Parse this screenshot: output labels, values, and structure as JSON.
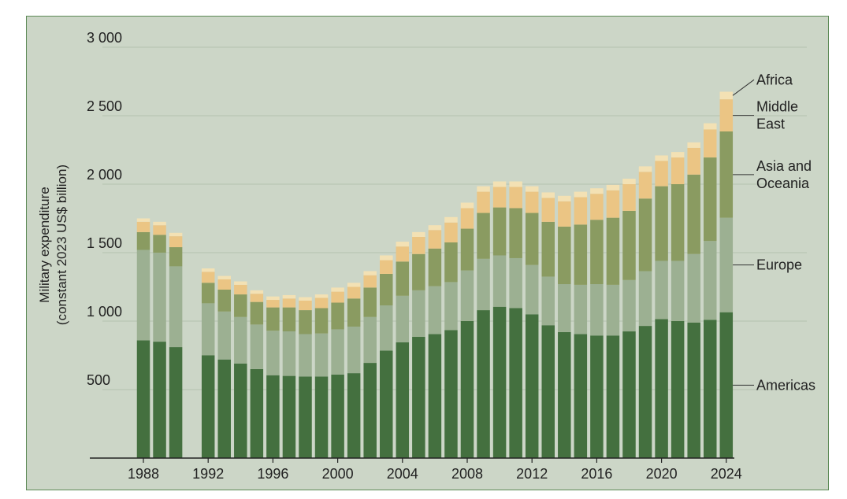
{
  "chart_data": {
    "type": "bar",
    "stacked": true,
    "ylabel_lines": [
      "Military expenditure",
      "(constant 2023 US$ billion)"
    ],
    "ylim": [
      0,
      3000
    ],
    "yticks": [
      500,
      1000,
      1500,
      2000,
      2500,
      3000
    ],
    "ytick_labels": [
      "500",
      "1 000",
      "1 500",
      "2 000",
      "2 500",
      "3 000"
    ],
    "xlim": [
      1985,
      2025
    ],
    "xticks": [
      1988,
      1992,
      1996,
      2000,
      2004,
      2008,
      2012,
      2016,
      2020,
      2024
    ],
    "xtick_labels": [
      "1988",
      "1992",
      "1996",
      "2000",
      "2004",
      "2008",
      "2012",
      "2016",
      "2020",
      "2024"
    ],
    "grid": true,
    "legend_placement": "right, labels at top of each series at 2024",
    "colors": {
      "background": "#ccd6c7",
      "border": "#5c8a56",
      "gridline": "#b5c1af",
      "axis": "#222222"
    },
    "x": [
      1988,
      1989,
      1990,
      1992,
      1993,
      1994,
      1995,
      1996,
      1997,
      1998,
      1999,
      2000,
      2001,
      2002,
      2003,
      2004,
      2005,
      2006,
      2007,
      2008,
      2009,
      2010,
      2011,
      2012,
      2013,
      2014,
      2015,
      2016,
      2017,
      2018,
      2019,
      2020,
      2021,
      2022,
      2023,
      2024
    ],
    "series": [
      {
        "name": "Americas",
        "color": "#44703f",
        "values": [
          860,
          850,
          810,
          750,
          720,
          690,
          650,
          605,
          600,
          595,
          595,
          610,
          620,
          695,
          785,
          845,
          885,
          905,
          935,
          1000,
          1080,
          1105,
          1095,
          1050,
          970,
          920,
          905,
          895,
          895,
          925,
          965,
          1015,
          1000,
          990,
          1010,
          1065
        ]
      },
      {
        "name": "Europe",
        "color": "#9cb092",
        "values": [
          660,
          650,
          590,
          380,
          350,
          340,
          325,
          325,
          325,
          310,
          315,
          330,
          340,
          335,
          330,
          340,
          340,
          350,
          350,
          370,
          375,
          375,
          365,
          360,
          355,
          350,
          360,
          375,
          370,
          375,
          400,
          425,
          440,
          500,
          575,
          690
        ]
      },
      {
        "name": "Asia and Oceania",
        "color": "#8a9b61",
        "values": [
          130,
          130,
          140,
          150,
          160,
          165,
          165,
          170,
          175,
          175,
          185,
          195,
          205,
          215,
          230,
          250,
          265,
          275,
          290,
          305,
          335,
          350,
          365,
          380,
          400,
          420,
          440,
          470,
          490,
          505,
          530,
          545,
          560,
          580,
          610,
          630
        ]
      },
      {
        "name": "Middle East",
        "color": "#ebc584",
        "values": [
          75,
          70,
          80,
          80,
          75,
          70,
          60,
          55,
          65,
          70,
          75,
          80,
          85,
          90,
          100,
          110,
          125,
          135,
          145,
          150,
          155,
          150,
          155,
          155,
          175,
          185,
          200,
          190,
          200,
          195,
          195,
          185,
          195,
          195,
          205,
          235
        ]
      },
      {
        "name": "Africa",
        "color": "#f3e1b4",
        "values": [
          25,
          25,
          25,
          25,
          25,
          25,
          25,
          25,
          25,
          25,
          25,
          30,
          30,
          30,
          35,
          35,
          35,
          35,
          40,
          40,
          40,
          40,
          40,
          40,
          40,
          40,
          40,
          40,
          40,
          40,
          40,
          40,
          40,
          40,
          45,
          55
        ]
      }
    ],
    "legend_labels": [
      {
        "series": "Africa",
        "lines": [
          "Africa"
        ]
      },
      {
        "series": "Middle East",
        "lines": [
          "Middle",
          "East"
        ]
      },
      {
        "series": "Asia and Oceania",
        "lines": [
          "Asia and",
          "Oceania"
        ]
      },
      {
        "series": "Europe",
        "lines": [
          "Europe"
        ]
      },
      {
        "series": "Americas",
        "lines": [
          "Americas"
        ]
      }
    ]
  }
}
